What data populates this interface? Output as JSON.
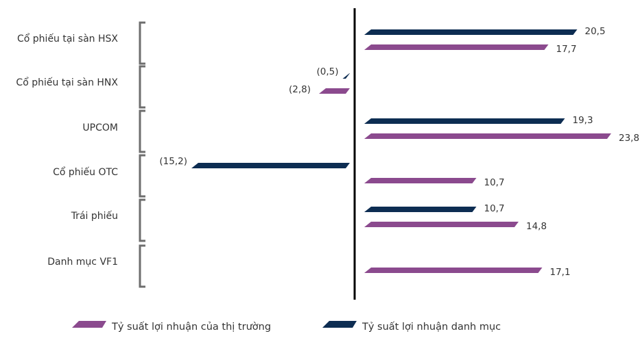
{
  "chart_data": {
    "type": "bar",
    "orientation": "horizontal",
    "categories": [
      "Cổ phiếu tại sàn HSX",
      "Cổ phiếu tại sàn HNX",
      "UPCOM",
      "Cổ phiếu OTC",
      "Trái phiếu",
      "Danh mục VF1"
    ],
    "series": [
      {
        "name": "Tỷ suất lợi nhuận danh mục",
        "color": "#0d2d52",
        "values": [
          20.5,
          -0.5,
          19.3,
          -15.2,
          10.7,
          null
        ],
        "labels": [
          "20,5",
          "(0,5)",
          "19,3",
          "(15,2)",
          "10,7",
          ""
        ]
      },
      {
        "name": "Tỷ suất lợi nhuận của thị trường",
        "color": "#8b4a8e",
        "values": [
          17.7,
          -2.8,
          23.8,
          10.7,
          14.8,
          17.1
        ],
        "labels": [
          "17,7",
          "(2,8)",
          "23,8",
          "10,7",
          "14,8",
          "17,1"
        ]
      }
    ],
    "legend": {
      "position": "bottom",
      "items": [
        {
          "label": "Tỷ suất lợi nhuận của thị trường",
          "color": "#8b4a8e"
        },
        {
          "label": "Tỷ suất lợi nhuận danh mục",
          "color": "#0d2d52"
        }
      ]
    },
    "title": "",
    "xlabel": "",
    "ylabel": ""
  },
  "colors": {
    "axis": "#000000",
    "bracket": "#6e6e6e",
    "text": "#333333"
  }
}
